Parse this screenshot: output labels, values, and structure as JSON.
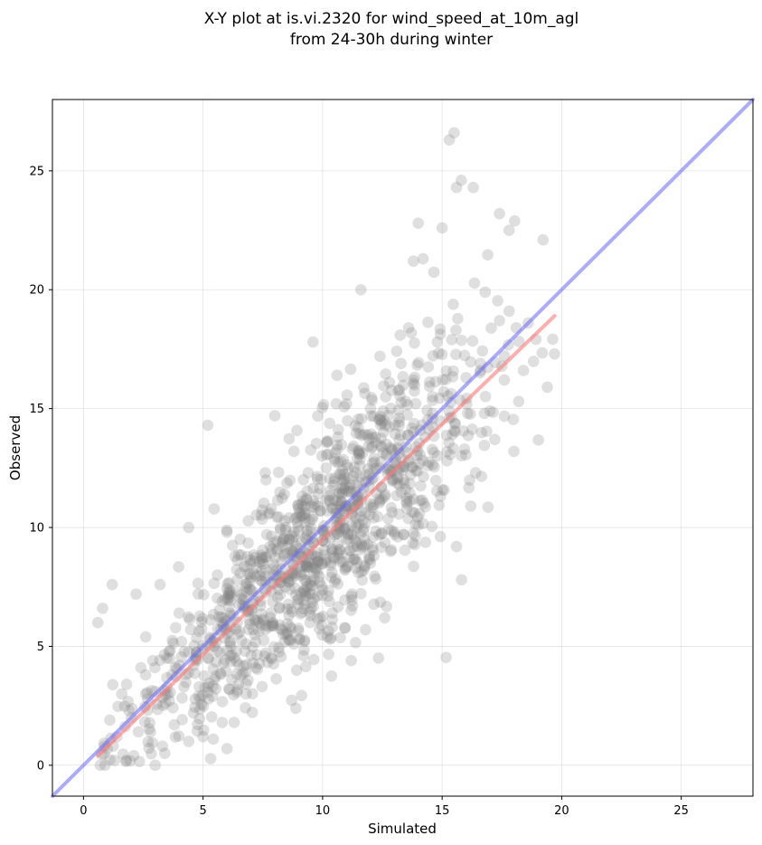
{
  "chart_data": {
    "type": "scatter",
    "title": "X-Y plot at is.vi.2320 for wind_speed_at_10m_agl",
    "subtitle": "from 24-30h during winter",
    "xlabel": "Simulated",
    "ylabel": "Observed",
    "xlim": [
      -1.3,
      28.0
    ],
    "ylim": [
      -1.3,
      28.0
    ],
    "xticks": [
      0,
      5,
      10,
      15,
      20,
      25
    ],
    "yticks": [
      0,
      5,
      10,
      15,
      20,
      25
    ],
    "grid": true,
    "point_color": "#808080",
    "reference_line": {
      "label": "1:1",
      "color": "#6666ff",
      "x": [
        -1.3,
        28.0
      ],
      "y": [
        -1.3,
        28.0
      ]
    },
    "fit_line": {
      "color": "#ff7777",
      "x": [
        0.6,
        19.7
      ],
      "y": [
        0.4,
        18.9
      ]
    },
    "points": {
      "x": [
        0.6,
        0.8,
        1.0,
        1.2,
        1.4,
        1.6,
        1.8,
        2.0,
        2.2,
        2.4,
        2.6,
        2.8,
        3.0,
        3.2,
        3.4,
        3.6,
        3.8,
        4.0,
        4.2,
        4.4,
        4.6,
        4.8,
        5.0,
        5.2,
        5.4,
        5.6,
        5.8,
        6.0,
        6.2,
        6.4,
        6.6,
        6.8,
        7.0,
        7.2,
        7.4,
        7.6,
        7.8,
        8.0,
        8.2,
        8.4,
        8.6,
        8.8,
        9.0,
        9.2,
        9.4,
        9.6,
        9.8,
        10.0,
        10.2,
        10.4,
        10.6,
        10.8,
        11.0,
        11.2,
        11.4,
        11.6,
        11.8,
        12.0,
        12.2,
        12.4,
        12.6,
        12.8,
        13.0,
        13.2,
        13.4,
        13.6,
        13.8,
        14.0,
        14.2,
        14.4,
        14.6,
        14.8,
        15.0,
        15.2,
        15.4,
        15.6,
        15.8,
        16.0,
        16.2,
        16.4,
        16.6,
        16.8,
        17.0,
        17.2,
        17.4,
        17.6,
        17.8,
        18.0,
        18.2,
        18.4,
        18.6,
        19.4,
        19.7,
        15.5,
        15.3,
        15.6,
        16.3,
        17.8,
        17.4,
        15.3,
        14.0,
        13.8,
        5.3,
        0.7,
        0.9,
        1.3,
        2.1,
        3.0,
        3.3,
        4.4,
        5.0,
        6.3,
        6.0,
        11.8,
        12.6,
        11.2,
        9.5,
        8.8,
        10.2,
        9.0,
        11.5,
        12.1,
        13.5,
        10.9,
        7.9,
        7.1,
        8.2,
        9.7,
        10.5,
        11.0,
        6.8,
        5.6,
        4.7,
        3.7,
        2.6,
        1.9,
        1.1,
        2.9,
        4.1,
        5.8,
        7.5,
        8.6,
        9.8,
        10.7,
        12.9,
        14.6,
        16.6,
        18.1
      ],
      "y": [
        6.0,
        6.6,
        0.7,
        7.6,
        1.2,
        3.0,
        3.4,
        2.0,
        7.2,
        4.1,
        3.8,
        1.4,
        3.1,
        7.6,
        0.5,
        4.5,
        1.7,
        6.4,
        3.3,
        10.0,
        2.2,
        7.2,
        4.9,
        14.3,
        2.9,
        8.0,
        1.8,
        9.8,
        3.6,
        4.8,
        7.0,
        3.0,
        7.9,
        4.1,
        6.9,
        12.3,
        9.2,
        14.7,
        5.9,
        11.4,
        7.7,
        13.2,
        10.8,
        4.6,
        12.3,
        17.8,
        8.6,
        9.9,
        13.6,
        5.8,
        16.4,
        11.4,
        15.2,
        4.4,
        10.1,
        20.0,
        12.2,
        8.5,
        13.8,
        17.2,
        11.3,
        16.1,
        12.7,
        14.3,
        9.7,
        18.4,
        16.2,
        10.1,
        21.3,
        12.6,
        15.5,
        17.8,
        22.6,
        12.8,
        17.9,
        9.2,
        24.6,
        16.3,
        10.9,
        12.3,
        16.9,
        19.9,
        14.9,
        13.7,
        18.7,
        16.2,
        19.1,
        13.2,
        15.3,
        16.6,
        18.6,
        15.9,
        17.3,
        26.6,
        26.3,
        24.3,
        24.3,
        22.5,
        23.2,
        14.6,
        22.8,
        21.2,
        5.3,
        0.0,
        0.0,
        0.2,
        0.4,
        0.0,
        0.8,
        1.0,
        1.2,
        1.8,
        0.7,
        5.7,
        6.2,
        7.1,
        6.3,
        5.1,
        5.4,
        7.0,
        8.1,
        9.6,
        11.1,
        9.9,
        5.9,
        5.7,
        6.6,
        8.3,
        9.7,
        10.9,
        5.1,
        4.8,
        4.5,
        3.8,
        3.0,
        2.3,
        1.9,
        4.4,
        5.2,
        6.9,
        8.6,
        9.5,
        10.9,
        11.4,
        13.3,
        14.8,
        16.6,
        18.4
      ]
    },
    "density_points": 1100,
    "density_seed": 11
  }
}
